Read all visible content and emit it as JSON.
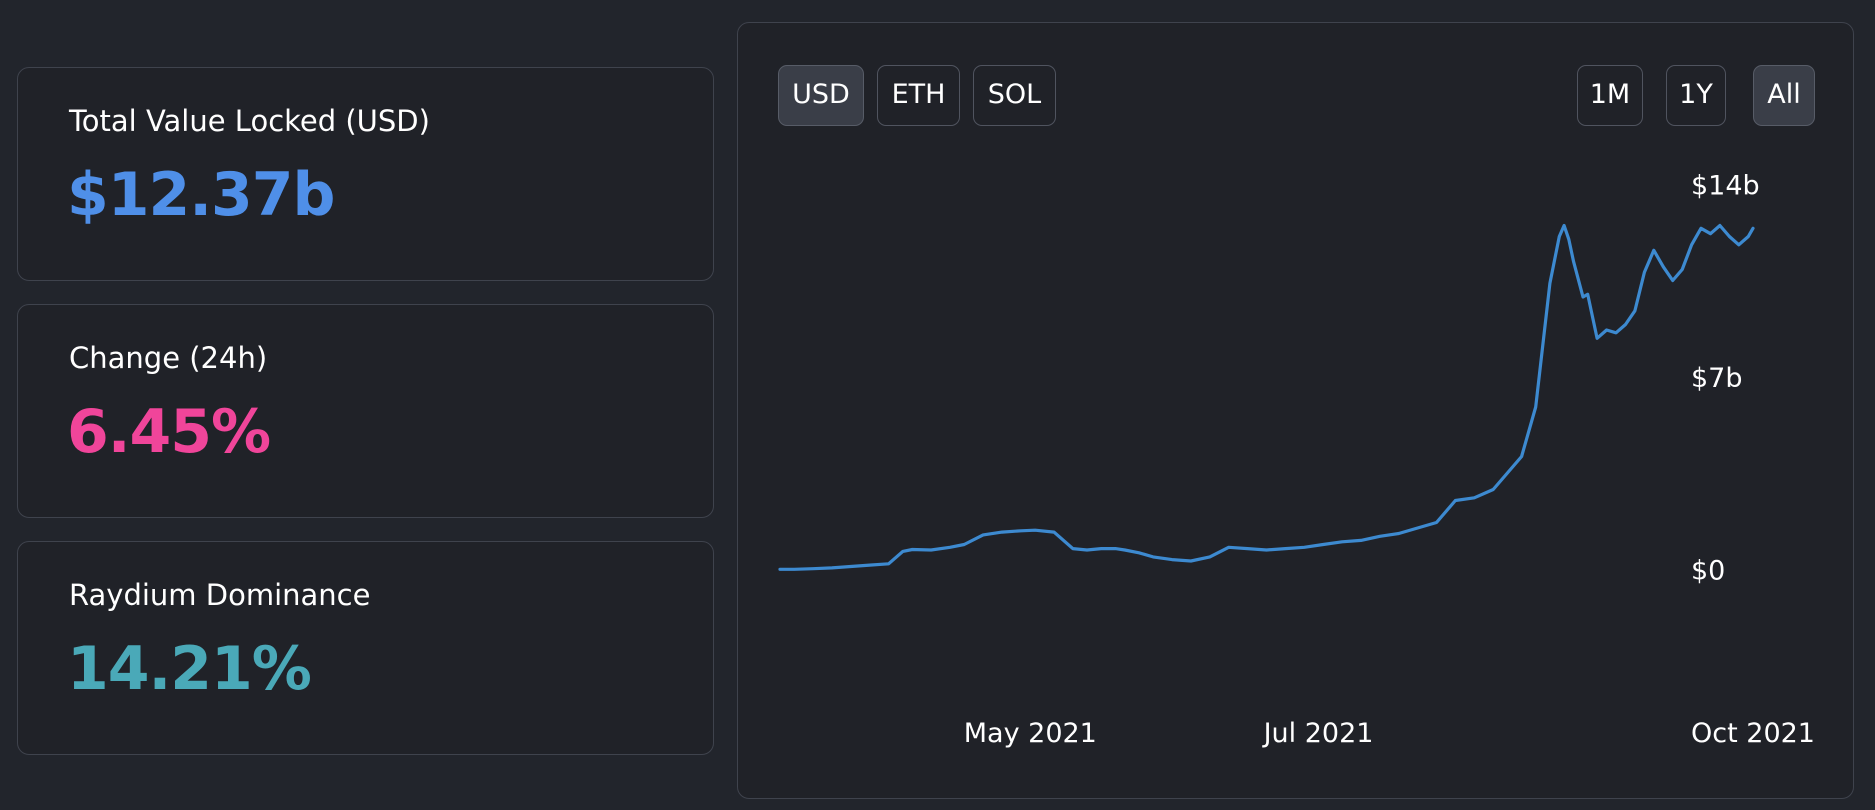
{
  "stats": {
    "tvl": {
      "label": "Total Value Locked (USD)",
      "value": "$12.37b",
      "color": "#4f8fe8"
    },
    "change": {
      "label": "Change (24h)",
      "value": "6.45%",
      "color": "#f0459a"
    },
    "dominance": {
      "label": "Raydium Dominance",
      "value": "14.21%",
      "color": "#4aa9b8"
    }
  },
  "currency_buttons": [
    {
      "label": "USD",
      "active": true
    },
    {
      "label": "ETH",
      "active": false
    },
    {
      "label": "SOL",
      "active": false
    }
  ],
  "range_buttons": [
    {
      "label": "1M",
      "active": false
    },
    {
      "label": "1Y",
      "active": false
    },
    {
      "label": "All",
      "active": true
    }
  ],
  "chart_data": {
    "type": "line",
    "title": "",
    "xlabel": "",
    "ylabel": "",
    "x_tick_labels": [
      "May 2021",
      "Jul 2021",
      "Oct 2021"
    ],
    "y_tick_labels": [
      "$14b",
      "$7b",
      "$0"
    ],
    "x_range": [
      "2021-03-09",
      "2021-10-01"
    ],
    "ylim": [
      0,
      14
    ],
    "y_ticks": [
      0,
      7,
      14
    ],
    "x_ticks": [
      "2021-05-01",
      "2021-07-01",
      "2021-10-01"
    ],
    "grid": false,
    "line_color": "#3d8ad0",
    "series": [
      {
        "x": [
          "2021-03-09",
          "2021-03-12",
          "2021-03-16",
          "2021-03-20",
          "2021-03-24",
          "2021-03-28",
          "2021-04-01",
          "2021-04-04",
          "2021-04-06",
          "2021-04-10",
          "2021-04-14",
          "2021-04-17",
          "2021-04-21",
          "2021-04-25",
          "2021-04-29",
          "2021-05-02",
          "2021-05-06",
          "2021-05-10",
          "2021-05-13",
          "2021-05-16",
          "2021-05-19",
          "2021-05-21",
          "2021-05-24",
          "2021-05-27",
          "2021-05-31",
          "2021-06-04",
          "2021-06-08",
          "2021-06-12",
          "2021-06-16",
          "2021-06-20",
          "2021-06-24",
          "2021-06-28",
          "2021-07-02",
          "2021-07-06",
          "2021-07-10",
          "2021-07-14",
          "2021-07-18",
          "2021-07-22",
          "2021-07-26",
          "2021-07-30",
          "2021-08-03",
          "2021-08-07",
          "2021-08-10",
          "2021-08-13",
          "2021-08-16",
          "2021-08-19",
          "2021-08-21",
          "2021-08-22",
          "2021-08-23",
          "2021-08-24",
          "2021-08-26",
          "2021-08-27",
          "2021-08-29",
          "2021-08-31",
          "2021-09-02",
          "2021-09-04",
          "2021-09-06",
          "2021-09-08",
          "2021-09-10",
          "2021-09-12",
          "2021-09-14",
          "2021-09-16",
          "2021-09-18",
          "2021-09-20",
          "2021-09-22",
          "2021-09-24",
          "2021-09-26",
          "2021-09-28",
          "2021-09-30",
          "2021-10-01"
        ],
        "values": [
          0.1,
          0.1,
          0.12,
          0.15,
          0.2,
          0.25,
          0.3,
          0.75,
          0.82,
          0.8,
          0.9,
          1.0,
          1.35,
          1.45,
          1.5,
          1.52,
          1.45,
          0.85,
          0.8,
          0.85,
          0.85,
          0.8,
          0.7,
          0.55,
          0.45,
          0.4,
          0.55,
          0.9,
          0.85,
          0.8,
          0.85,
          0.9,
          1.0,
          1.1,
          1.15,
          1.3,
          1.4,
          1.6,
          1.8,
          2.6,
          2.7,
          3.0,
          3.6,
          4.2,
          6.0,
          10.5,
          12.2,
          12.6,
          12.1,
          11.3,
          10.0,
          10.1,
          8.5,
          8.8,
          8.7,
          9.0,
          9.5,
          10.9,
          11.7,
          11.1,
          10.6,
          11.0,
          11.9,
          12.5,
          12.3,
          12.6,
          12.2,
          11.9,
          12.2,
          12.5
        ]
      }
    ]
  }
}
